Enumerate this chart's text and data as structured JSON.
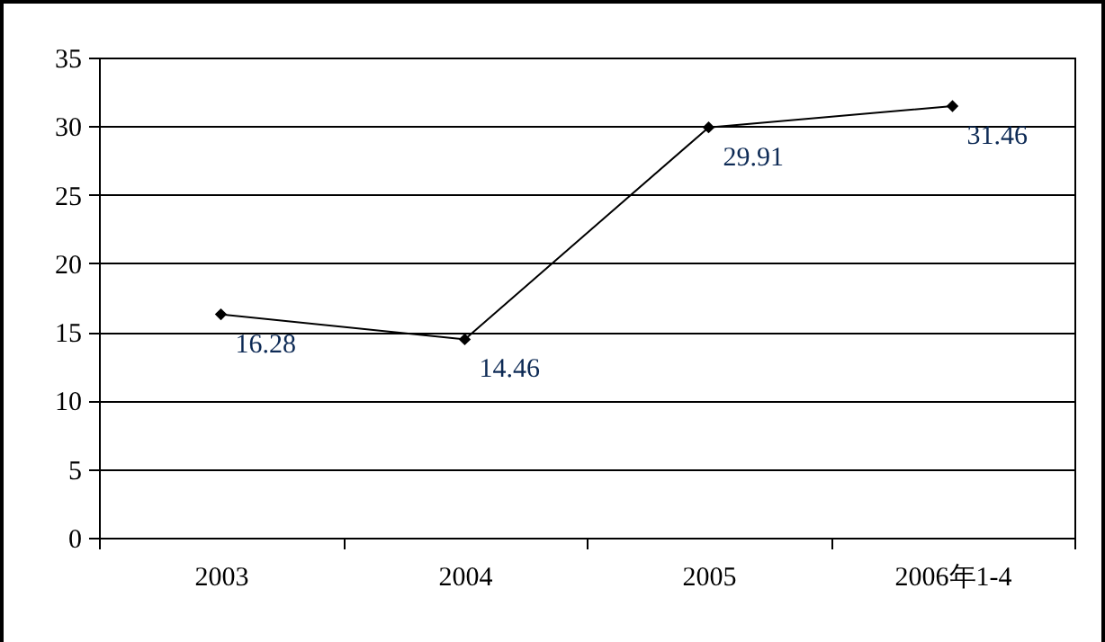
{
  "chart_data": {
    "type": "line",
    "categories": [
      "2003",
      "2004",
      "2005",
      "2006年1-4"
    ],
    "series": [
      {
        "color": "#000000",
        "values": [
          16.28,
          14.46,
          29.91,
          31.46
        ]
      }
    ],
    "ylim": [
      0,
      35
    ],
    "yticks": [
      0,
      5,
      10,
      15,
      20,
      25,
      30,
      35
    ],
    "grid": "y",
    "marker": "diamond",
    "line_style": "solid",
    "data_labels": true,
    "legend": false
  }
}
